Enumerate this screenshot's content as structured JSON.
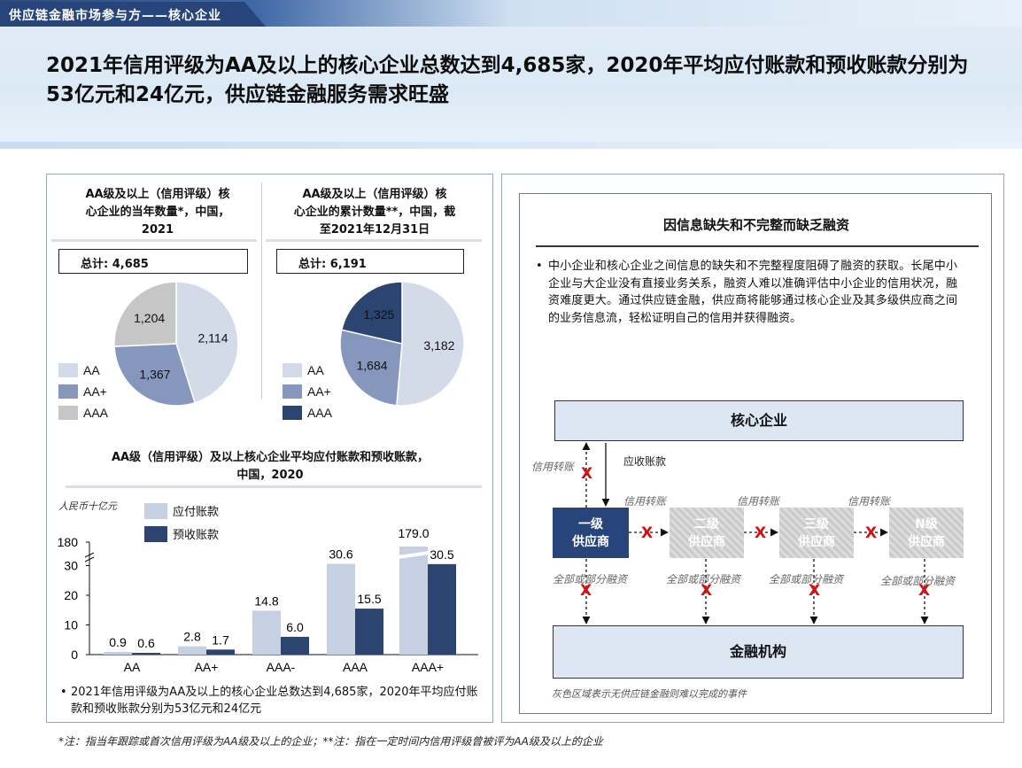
{
  "header": {
    "tag": "供应链金融市场参与方——核心企业",
    "headline": "2021年信用评级为AA及以上的核心企业总数达到4,685家，2020年平均应付账款和预收账款分别为53亿元和24亿元，供应链金融服务需求旺盛"
  },
  "colors": {
    "AA": "#d3dbe8",
    "AA+": "#8597bd",
    "AAA": "#c6c6c6",
    "AAA_dark": "#2c4470",
    "payable": "#c5d0e2",
    "advance": "#2c4470"
  },
  "chart_data": [
    {
      "type": "pie",
      "title": "AA级及以上（信用评级）核心企业的当年数量*，中国，2021",
      "total_label": "总计: 4,685",
      "categories": [
        "AA",
        "AA+",
        "AAA"
      ],
      "values": [
        2114,
        1367,
        1204
      ],
      "value_labels": [
        "2,114",
        "1,367",
        "1,204"
      ]
    },
    {
      "type": "pie",
      "title": "AA级及以上（信用评级）核心企业的累计数量**，中国，截至2021年12月31日",
      "total_label": "总计: 6,191",
      "categories": [
        "AA",
        "AA+",
        "AAA"
      ],
      "values": [
        3182,
        1684,
        1325
      ],
      "value_labels": [
        "3,182",
        "1,684",
        "1,325"
      ]
    },
    {
      "type": "bar",
      "title": "AA级（信用评级）及以上核心企业平均应付账款和预收账款，中国，2020",
      "ylabel": "人民币十亿元",
      "categories": [
        "AA",
        "AA+",
        "AAA-",
        "AAA",
        "AAA+"
      ],
      "series": [
        {
          "name": "应付账款",
          "values": [
            0.9,
            2.8,
            14.8,
            30.6,
            179.0
          ],
          "labels": [
            "0.9",
            "2.8",
            "14.8",
            "30.6",
            "179.0"
          ]
        },
        {
          "name": "预收账款",
          "values": [
            0.6,
            1.7,
            6.0,
            15.5,
            30.5
          ],
          "labels": [
            "0.6",
            "1.7",
            "6.0",
            "15.5",
            "30.5"
          ]
        }
      ],
      "y_ticks": [
        "0",
        "10",
        "20",
        "30",
        "180"
      ],
      "axis_break": true
    }
  ],
  "left": {
    "pie1_title_lines": [
      "AA级及以上（信用评级）核",
      "心企业的当年数量*，中国，",
      "2021"
    ],
    "pie2_title_lines": [
      "AA级及以上（信用评级）核",
      "心企业的累计数量**，中国，截",
      "至2021年12月31日"
    ],
    "bar_title_lines": [
      "AA级（信用评级）及以上核心企业平均应付账款和预收账款，",
      "中国，2020"
    ],
    "bullet": "2021年信用评级为AA及以上的核心企业总数达到4,685家，2020年平均应付账款和预收账款分别为53亿元和24亿元"
  },
  "right": {
    "title": "因信息缺失和不完整而缺乏融资",
    "text": "中小企业和核心企业之间信息的缺失和不完整程度阻碍了融资的获取。长尾中小企业与大企业没有直接业务关系，融资人难以准确评估中小企业的信用状况，融资难度更大。通过供应链金融，供应商将能够通过核心企业及其多级供应商之间的业务信息流，轻松证明自己的信用并获得融资。",
    "core": "核心企业",
    "supplier1": [
      "一级",
      "供应商"
    ],
    "supplier2": [
      "二级",
      "供应商"
    ],
    "supplier3": [
      "三级",
      "供应商"
    ],
    "supplierN": [
      "N级",
      "供应商"
    ],
    "finance": "金融机构",
    "credit_transfer": "信用转账",
    "advance": "应收账款",
    "partial_financing": "全部或部分融资",
    "x_mark": "X",
    "footnote": "灰色区域表示无供应链金融则难以完成的事件"
  },
  "footnote": "*注：指当年跟踪或首次信用评级为AA级及以上的企业；**注：指在一定时间内信用评级曾被评为AA级及以上的企业"
}
